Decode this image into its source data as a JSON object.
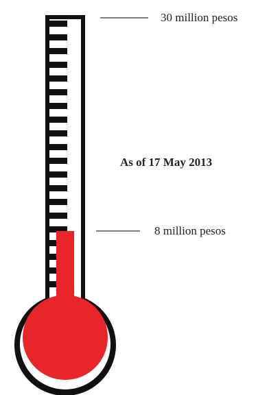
{
  "chart_data": {
    "type": "thermometer",
    "title": "",
    "date_label": "As of 17 May 2013",
    "goal": {
      "value": 30,
      "label": "30 million pesos"
    },
    "current": {
      "value": 8,
      "label": "8 million pesos"
    },
    "unit": "million pesos",
    "scale_max": 30,
    "tick_count": 20
  },
  "colors": {
    "fill": "#e8262a",
    "outline": "#111111",
    "tick": "#111111",
    "leader_line": "#333333",
    "text": "#222222"
  },
  "icons": {
    "thermometer": "thermometer-icon"
  }
}
